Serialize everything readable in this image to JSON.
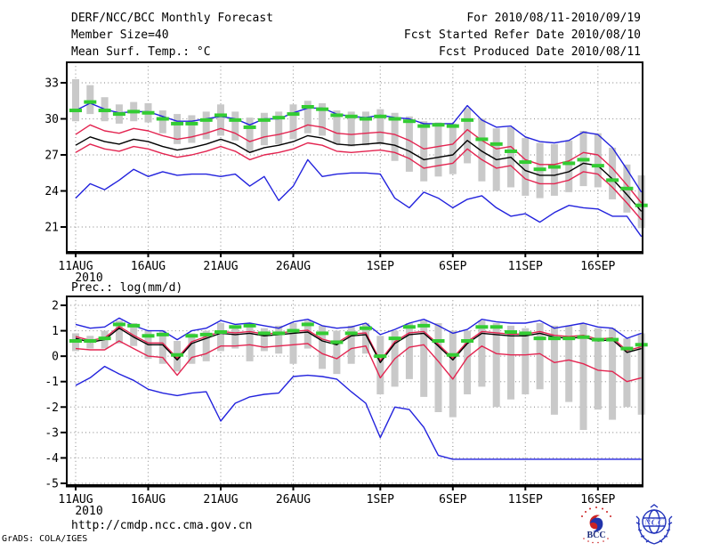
{
  "header": {
    "title": "DERF/NCC/BCC Monthly Forecast",
    "member_size": "Member Size=40",
    "variable_top": "Mean Surf. Temp.: °C",
    "for_range": "For 2010/08/11-2010/09/19",
    "fcst_started": "Fcst Started Refer Date 2010/08/10",
    "fcst_produced": "Fcst Produced Date 2010/08/11"
  },
  "footer": {
    "url": "http://cmdp.ncc.cma.gov.cn",
    "grads_credit": "GrADS: COLA/IGES",
    "bcc_logo_label": "BCC",
    "ncc_logo_label": "NCC"
  },
  "colors": {
    "blue_line": "#2222dd",
    "red_line": "#e32450",
    "black_line": "#000000",
    "green_dash": "#33cc33",
    "spread_bar": "#c9c9c9",
    "grid": "#999999",
    "frame": "#000000"
  },
  "chart_data": [
    {
      "id": "surface-temperature",
      "type": "line",
      "title": "Mean Surf. Temp.: °C",
      "x_tick_labels": [
        "11AUG",
        "16AUG",
        "21AUG",
        "26AUG",
        "1SEP",
        "6SEP",
        "11SEP",
        "16SEP"
      ],
      "x_tick_days": [
        0,
        5,
        10,
        15,
        21,
        26,
        31,
        36
      ],
      "x_year_label": "2010",
      "n_points": 40,
      "yticks": [
        33,
        30,
        27,
        24,
        21
      ],
      "ylim": [
        18.9,
        34.7
      ],
      "grid": true,
      "series": [
        {
          "name": "ensemble-max",
          "color": "#2222dd",
          "values": [
            30.7,
            31.3,
            30.8,
            30.5,
            30.6,
            30.6,
            30.2,
            29.8,
            29.8,
            30.0,
            30.2,
            30.0,
            29.5,
            30.0,
            30.0,
            30.5,
            30.9,
            30.9,
            30.4,
            30.2,
            30.1,
            30.3,
            30.1,
            30.0,
            29.6,
            29.6,
            29.6,
            31.1,
            29.9,
            29.3,
            29.4,
            28.5,
            28.1,
            28.0,
            28.2,
            28.9,
            28.7,
            27.6,
            25.8,
            23.9
          ]
        },
        {
          "name": "mean-plus-sd",
          "color": "#e32450",
          "values": [
            28.7,
            29.5,
            29.0,
            28.8,
            29.2,
            29.0,
            28.6,
            28.3,
            28.5,
            28.8,
            29.2,
            28.8,
            28.1,
            28.5,
            28.7,
            29.0,
            29.5,
            29.3,
            28.8,
            28.7,
            28.8,
            28.9,
            28.7,
            28.2,
            27.5,
            27.7,
            27.9,
            29.1,
            28.2,
            27.5,
            27.7,
            26.6,
            26.2,
            26.2,
            26.5,
            27.2,
            27.0,
            25.9,
            24.5,
            23.0
          ]
        },
        {
          "name": "ensemble-mean",
          "color": "#000000",
          "values": [
            27.8,
            28.5,
            28.1,
            27.9,
            28.3,
            28.1,
            27.7,
            27.4,
            27.6,
            27.9,
            28.3,
            27.9,
            27.2,
            27.6,
            27.8,
            28.1,
            28.6,
            28.4,
            27.9,
            27.8,
            27.9,
            28.0,
            27.8,
            27.3,
            26.6,
            26.8,
            27.0,
            28.2,
            27.3,
            26.6,
            26.8,
            25.7,
            25.3,
            25.3,
            25.6,
            26.3,
            26.1,
            25.0,
            23.7,
            22.3
          ]
        },
        {
          "name": "mean-minus-sd",
          "color": "#e32450",
          "values": [
            27.2,
            27.9,
            27.5,
            27.3,
            27.7,
            27.5,
            27.1,
            26.8,
            27.0,
            27.3,
            27.7,
            27.3,
            26.6,
            27.0,
            27.2,
            27.5,
            28.0,
            27.8,
            27.3,
            27.2,
            27.3,
            27.4,
            27.2,
            26.7,
            25.9,
            26.1,
            26.3,
            27.5,
            26.6,
            25.9,
            26.1,
            25.0,
            24.6,
            24.6,
            24.9,
            25.6,
            25.4,
            24.3,
            23.0,
            21.6
          ]
        },
        {
          "name": "ensemble-min",
          "color": "#2222dd",
          "values": [
            23.4,
            24.6,
            24.1,
            24.9,
            25.8,
            25.2,
            25.6,
            25.3,
            25.4,
            25.4,
            25.2,
            25.4,
            24.4,
            25.2,
            23.2,
            24.4,
            26.6,
            25.2,
            25.4,
            25.5,
            25.5,
            25.4,
            23.4,
            22.6,
            23.9,
            23.4,
            22.6,
            23.3,
            23.6,
            22.6,
            21.9,
            22.1,
            21.4,
            22.2,
            22.8,
            22.6,
            22.5,
            21.9,
            21.9,
            20.2
          ]
        }
      ],
      "dash_series": {
        "name": "green-dash-overlay",
        "color": "#33cc33",
        "values": [
          30.7,
          31.4,
          30.7,
          30.4,
          30.6,
          30.5,
          30.0,
          29.6,
          29.6,
          29.9,
          30.3,
          29.9,
          29.3,
          29.9,
          30.1,
          30.4,
          31.0,
          30.8,
          30.3,
          30.2,
          30.0,
          30.2,
          30.0,
          29.8,
          29.4,
          29.5,
          29.4,
          29.9,
          28.3,
          27.9,
          27.3,
          26.4,
          25.8,
          26.0,
          26.3,
          26.6,
          26.1,
          24.9,
          24.2,
          22.8
        ]
      },
      "spread_bars": {
        "color": "#c9c9c9",
        "ranges": [
          [
            29.8,
            33.3
          ],
          [
            30.4,
            32.8
          ],
          [
            29.8,
            31.8
          ],
          [
            29.6,
            31.2
          ],
          [
            29.8,
            31.4
          ],
          [
            29.7,
            31.3
          ],
          [
            28.8,
            30.7
          ],
          [
            27.9,
            30.4
          ],
          [
            28.0,
            30.3
          ],
          [
            28.3,
            30.6
          ],
          [
            28.6,
            31.2
          ],
          [
            28.2,
            30.6
          ],
          [
            27.2,
            30.1
          ],
          [
            27.8,
            30.5
          ],
          [
            27.9,
            30.6
          ],
          [
            28.3,
            31.2
          ],
          [
            28.8,
            31.5
          ],
          [
            28.6,
            31.3
          ],
          [
            27.9,
            30.7
          ],
          [
            27.7,
            30.6
          ],
          [
            27.8,
            30.6
          ],
          [
            27.9,
            30.8
          ],
          [
            26.5,
            30.5
          ],
          [
            25.6,
            30.2
          ],
          [
            24.8,
            29.8
          ],
          [
            25.2,
            29.7
          ],
          [
            25.4,
            29.6
          ],
          [
            26.3,
            30.9
          ],
          [
            24.8,
            30.0
          ],
          [
            24.0,
            29.2
          ],
          [
            24.3,
            29.3
          ],
          [
            23.6,
            28.4
          ],
          [
            23.4,
            28.0
          ],
          [
            23.6,
            27.9
          ],
          [
            23.9,
            28.2
          ],
          [
            24.4,
            29.0
          ],
          [
            24.3,
            28.8
          ],
          [
            23.3,
            27.6
          ],
          [
            22.2,
            26.2
          ],
          [
            20.9,
            25.3
          ]
        ]
      }
    },
    {
      "id": "precipitation",
      "type": "line",
      "title": "Prec.: log(mm/d)",
      "x_tick_labels": [
        "11AUG",
        "16AUG",
        "21AUG",
        "26AUG",
        "1SEP",
        "6SEP",
        "11SEP",
        "16SEP"
      ],
      "x_tick_days": [
        0,
        5,
        10,
        15,
        21,
        26,
        31,
        36
      ],
      "x_year_label": "2010",
      "n_points": 40,
      "yticks": [
        2,
        1,
        0,
        -1,
        -2,
        -3,
        -4,
        -5
      ],
      "ylim": [
        -5.1,
        2.35
      ],
      "grid": true,
      "series": [
        {
          "name": "ensemble-max",
          "color": "#2222dd",
          "values": [
            1.25,
            1.1,
            1.15,
            1.5,
            1.2,
            1.0,
            1.0,
            0.65,
            1.0,
            1.1,
            1.4,
            1.25,
            1.3,
            1.2,
            1.1,
            1.35,
            1.45,
            1.2,
            1.1,
            1.15,
            1.3,
            0.85,
            1.05,
            1.3,
            1.45,
            1.2,
            0.9,
            1.05,
            1.45,
            1.35,
            1.3,
            1.3,
            1.4,
            1.1,
            1.2,
            1.3,
            1.15,
            1.1,
            0.7,
            0.9
          ]
        },
        {
          "name": "mean-plus-sd",
          "color": "#e32450",
          "values": [
            0.77,
            0.62,
            0.72,
            1.17,
            0.82,
            0.52,
            0.52,
            -0.08,
            0.57,
            0.77,
            0.97,
            0.92,
            0.97,
            0.87,
            0.92,
            0.97,
            1.02,
            0.67,
            0.52,
            0.87,
            0.92,
            -0.18,
            0.57,
            0.92,
            0.97,
            0.47,
            -0.08,
            0.57,
            0.97,
            0.92,
            0.87,
            0.87,
            0.97,
            0.82,
            0.77,
            0.82,
            0.67,
            0.72,
            0.22,
            0.37
          ]
        },
        {
          "name": "ensemble-mean",
          "color": "#000000",
          "values": [
            0.7,
            0.55,
            0.65,
            1.1,
            0.75,
            0.45,
            0.45,
            -0.15,
            0.5,
            0.7,
            0.9,
            0.85,
            0.9,
            0.8,
            0.85,
            0.9,
            0.95,
            0.6,
            0.45,
            0.8,
            0.85,
            -0.25,
            0.5,
            0.85,
            0.9,
            0.4,
            -0.15,
            0.5,
            0.9,
            0.85,
            0.8,
            0.8,
            0.9,
            0.75,
            0.7,
            0.75,
            0.6,
            0.65,
            0.15,
            0.3
          ]
        },
        {
          "name": "mean-minus-sd",
          "color": "#e32450",
          "values": [
            0.3,
            0.25,
            0.25,
            0.6,
            0.3,
            0.0,
            -0.05,
            -0.75,
            -0.05,
            0.1,
            0.4,
            0.4,
            0.45,
            0.35,
            0.4,
            0.45,
            0.5,
            0.1,
            -0.1,
            0.3,
            0.4,
            -0.85,
            -0.1,
            0.35,
            0.45,
            -0.2,
            -0.9,
            -0.05,
            0.4,
            0.1,
            0.05,
            0.05,
            0.1,
            -0.25,
            -0.15,
            -0.3,
            -0.55,
            -0.6,
            -1.0,
            -0.85
          ]
        },
        {
          "name": "ensemble-min",
          "color": "#2222dd",
          "values": [
            -1.15,
            -0.85,
            -0.4,
            -0.7,
            -0.95,
            -1.3,
            -1.45,
            -1.55,
            -1.45,
            -1.4,
            -2.55,
            -1.85,
            -1.6,
            -1.5,
            -1.45,
            -0.8,
            -0.75,
            -0.8,
            -0.9,
            -1.4,
            -1.85,
            -3.2,
            -2.0,
            -2.1,
            -2.8,
            -3.9,
            -4.05,
            -4.05,
            -4.05,
            -4.05,
            -4.05,
            -4.05,
            -4.05,
            -4.05,
            -4.05,
            -4.05,
            -4.05,
            -4.05,
            -4.05,
            -4.05
          ]
        }
      ],
      "dash_series": {
        "name": "green-dash-overlay",
        "color": "#33cc33",
        "values": [
          0.6,
          0.6,
          0.7,
          1.25,
          1.2,
          0.8,
          0.85,
          0.05,
          0.8,
          0.85,
          0.95,
          1.15,
          1.2,
          0.9,
          0.9,
          1.0,
          1.25,
          0.9,
          0.55,
          0.9,
          1.1,
          0.0,
          0.7,
          1.15,
          1.2,
          0.6,
          0.05,
          0.6,
          1.15,
          1.15,
          0.95,
          0.9,
          0.7,
          0.7,
          0.7,
          0.75,
          0.65,
          0.65,
          0.3,
          0.45
        ]
      },
      "spread_bars": {
        "color": "#c9c9c9",
        "ranges": [
          [
            0.2,
            0.9
          ],
          [
            0.3,
            0.8
          ],
          [
            0.3,
            1.0
          ],
          [
            0.5,
            1.4
          ],
          [
            0.4,
            1.3
          ],
          [
            -0.1,
            1.0
          ],
          [
            -0.3,
            1.0
          ],
          [
            -0.6,
            0.6
          ],
          [
            -0.3,
            0.9
          ],
          [
            -0.2,
            1.0
          ],
          [
            0.2,
            1.3
          ],
          [
            0.3,
            1.2
          ],
          [
            -0.2,
            1.3
          ],
          [
            0.2,
            1.1
          ],
          [
            0.1,
            1.2
          ],
          [
            -0.3,
            1.3
          ],
          [
            0.3,
            1.4
          ],
          [
            -0.5,
            1.2
          ],
          [
            -0.7,
            1.0
          ],
          [
            -0.3,
            1.2
          ],
          [
            0.1,
            1.3
          ],
          [
            -1.5,
            0.8
          ],
          [
            -1.2,
            1.0
          ],
          [
            -0.9,
            1.3
          ],
          [
            -1.6,
            1.4
          ],
          [
            -2.2,
            1.3
          ],
          [
            -2.4,
            1.0
          ],
          [
            -1.5,
            1.0
          ],
          [
            -1.2,
            1.4
          ],
          [
            -2.0,
            1.3
          ],
          [
            -1.7,
            1.2
          ],
          [
            -1.5,
            1.1
          ],
          [
            -1.3,
            1.3
          ],
          [
            -2.3,
            1.2
          ],
          [
            -1.8,
            1.2
          ],
          [
            -2.9,
            1.3
          ],
          [
            -2.1,
            1.1
          ],
          [
            -2.5,
            1.1
          ],
          [
            -2.0,
            0.7
          ],
          [
            -2.3,
            0.9
          ]
        ]
      }
    }
  ]
}
